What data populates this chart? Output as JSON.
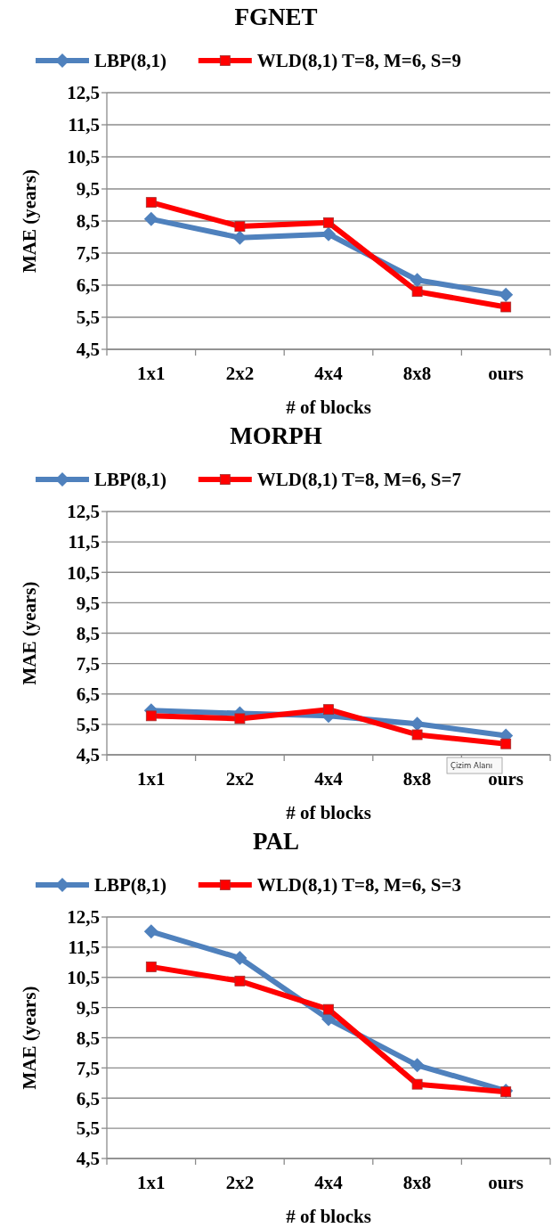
{
  "chart_data": [
    {
      "type": "line",
      "title": "FGNET",
      "xlabel": "# of blocks",
      "ylabel": "MAE (years)",
      "categories": [
        "1x1",
        "2x2",
        "4x4",
        "8x8",
        "ours"
      ],
      "ylim": [
        4.5,
        12.5
      ],
      "yticks": [
        {
          "value": 4.5,
          "label": "4,5"
        },
        {
          "value": 5.5,
          "label": "5,5"
        },
        {
          "value": 6.5,
          "label": "6,5"
        },
        {
          "value": 7.5,
          "label": "7,5"
        },
        {
          "value": 8.5,
          "label": "8,5"
        },
        {
          "value": 9.5,
          "label": "9,5"
        },
        {
          "value": 10.5,
          "label": "10,5"
        },
        {
          "value": 11.5,
          "label": "11,5"
        },
        {
          "value": 12.5,
          "label": "12,5"
        }
      ],
      "grid": "y",
      "legend": "top",
      "series": [
        {
          "name": "LBP(8,1)",
          "color": "#4f81bd",
          "marker": "diamond",
          "values": [
            8.56,
            7.98,
            8.09,
            6.66,
            6.2
          ]
        },
        {
          "name": "WLD(8,1) T=8, M=6, S=9",
          "color": "#ff0000",
          "marker": "square",
          "values": [
            9.08,
            8.33,
            8.45,
            6.3,
            5.82
          ]
        }
      ]
    },
    {
      "type": "line",
      "title": "MORPH",
      "xlabel": "# of blocks",
      "ylabel": "MAE (years)",
      "categories": [
        "1x1",
        "2x2",
        "4x4",
        "8x8",
        "ours"
      ],
      "ylim": [
        4.5,
        12.5
      ],
      "yticks": [
        {
          "value": 4.5,
          "label": "4,5"
        },
        {
          "value": 5.5,
          "label": "5,5"
        },
        {
          "value": 6.5,
          "label": "6,5"
        },
        {
          "value": 7.5,
          "label": "7,5"
        },
        {
          "value": 8.5,
          "label": "8,5"
        },
        {
          "value": 9.5,
          "label": "9,5"
        },
        {
          "value": 10.5,
          "label": "10,5"
        },
        {
          "value": 11.5,
          "label": "11,5"
        },
        {
          "value": 12.5,
          "label": "12,5"
        }
      ],
      "grid": "y",
      "legend": "top",
      "annotations": [
        "Çizim Alanı"
      ],
      "series": [
        {
          "name": "LBP(8,1)",
          "color": "#4f81bd",
          "marker": "diamond",
          "values": [
            5.96,
            5.86,
            5.78,
            5.52,
            5.13
          ]
        },
        {
          "name": "WLD(8,1) T=8, M=6, S=7",
          "color": "#ff0000",
          "marker": "square",
          "values": [
            5.78,
            5.69,
            5.99,
            5.16,
            4.86
          ]
        }
      ]
    },
    {
      "type": "line",
      "title": "PAL",
      "xlabel": "# of blocks",
      "ylabel": "MAE (years)",
      "categories": [
        "1x1",
        "2x2",
        "4x4",
        "8x8",
        "ours"
      ],
      "ylim": [
        4.5,
        12.5
      ],
      "yticks": [
        {
          "value": 4.5,
          "label": "4,5"
        },
        {
          "value": 5.5,
          "label": "5,5"
        },
        {
          "value": 6.5,
          "label": "6,5"
        },
        {
          "value": 7.5,
          "label": "7,5"
        },
        {
          "value": 8.5,
          "label": "8,5"
        },
        {
          "value": 9.5,
          "label": "9,5"
        },
        {
          "value": 10.5,
          "label": "10,5"
        },
        {
          "value": 11.5,
          "label": "11,5"
        },
        {
          "value": 12.5,
          "label": "12,5"
        }
      ],
      "grid": "y",
      "legend": "top",
      "series": [
        {
          "name": "LBP(8,1)",
          "color": "#4f81bd",
          "marker": "diamond",
          "values": [
            12.02,
            11.14,
            9.12,
            7.59,
            6.74
          ]
        },
        {
          "name": "WLD(8,1) T=8, M=6, S=3",
          "color": "#ff0000",
          "marker": "square",
          "values": [
            10.85,
            10.38,
            9.44,
            6.96,
            6.71
          ]
        }
      ]
    }
  ]
}
